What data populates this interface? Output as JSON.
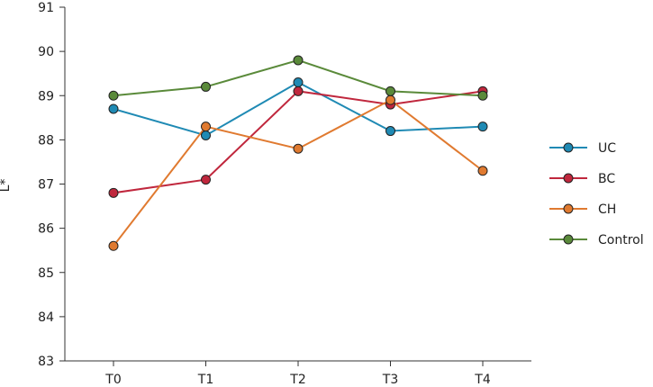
{
  "chart_data": {
    "type": "line",
    "categories": [
      "T0",
      "T1",
      "T2",
      "T3",
      "T4"
    ],
    "series": [
      {
        "name": "UC",
        "values": [
          88.7,
          88.1,
          89.3,
          88.2,
          88.3
        ],
        "color": "#1f8ab4"
      },
      {
        "name": "BC",
        "values": [
          86.8,
          87.1,
          89.1,
          88.8,
          89.1
        ],
        "color": "#c0273d"
      },
      {
        "name": "CH",
        "values": [
          85.6,
          88.3,
          87.8,
          88.9,
          87.3
        ],
        "color": "#e07a30"
      },
      {
        "name": "Control",
        "values": [
          89.0,
          89.2,
          89.8,
          89.1,
          89.0
        ],
        "color": "#5a8a3a"
      }
    ],
    "ylabel": "L*",
    "xlabel": "",
    "ylim": [
      83,
      91
    ],
    "yticks": [
      "83",
      "84",
      "85",
      "86",
      "87",
      "88",
      "89",
      "90",
      "91"
    ],
    "grid": false,
    "legend_position": "right"
  }
}
